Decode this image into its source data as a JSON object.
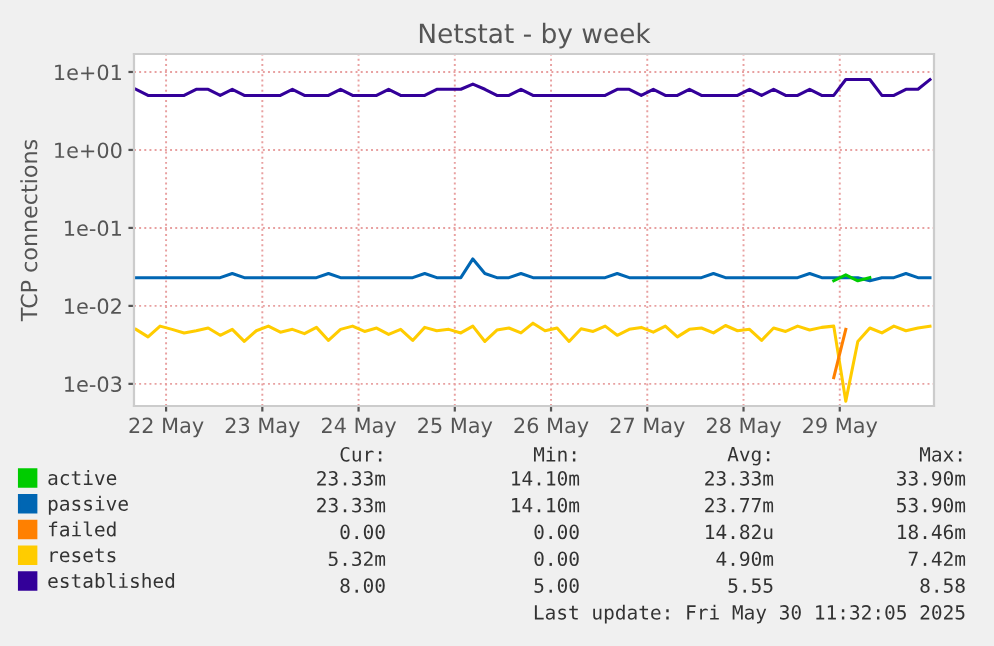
{
  "chart_data": {
    "type": "line",
    "title": "Netstat - by week",
    "ylabel": "TCP connections",
    "x": [
      "2025-05-22T04:30",
      "2025-05-22T07:30",
      "2025-05-22T10:30",
      "2025-05-22T13:30",
      "2025-05-22T16:30",
      "2025-05-22T19:30",
      "2025-05-22T22:30",
      "2025-05-23T01:30",
      "2025-05-23T04:30",
      "2025-05-23T07:30",
      "2025-05-23T10:30",
      "2025-05-23T13:30",
      "2025-05-23T16:30",
      "2025-05-23T19:30",
      "2025-05-23T22:30",
      "2025-05-24T01:30",
      "2025-05-24T04:30",
      "2025-05-24T07:30",
      "2025-05-24T10:30",
      "2025-05-24T13:30",
      "2025-05-24T16:30",
      "2025-05-24T19:30",
      "2025-05-24T22:30",
      "2025-05-25T01:30",
      "2025-05-25T04:30",
      "2025-05-25T07:30",
      "2025-05-25T10:30",
      "2025-05-25T13:30",
      "2025-05-25T16:30",
      "2025-05-25T19:30",
      "2025-05-25T22:30",
      "2025-05-26T01:30",
      "2025-05-26T04:30",
      "2025-05-26T07:30",
      "2025-05-26T10:30",
      "2025-05-26T13:30",
      "2025-05-26T16:30",
      "2025-05-26T19:30",
      "2025-05-26T22:30",
      "2025-05-27T01:30",
      "2025-05-27T04:30",
      "2025-05-27T07:30",
      "2025-05-27T10:30",
      "2025-05-27T13:30",
      "2025-05-27T16:30",
      "2025-05-27T19:30",
      "2025-05-27T22:30",
      "2025-05-28T01:30",
      "2025-05-28T04:30",
      "2025-05-28T07:30",
      "2025-05-28T10:30",
      "2025-05-28T13:30",
      "2025-05-28T16:30",
      "2025-05-28T19:30",
      "2025-05-28T22:30",
      "2025-05-29T01:30",
      "2025-05-29T04:30",
      "2025-05-29T07:30",
      "2025-05-29T10:30",
      "2025-05-29T13:30",
      "2025-05-29T16:30",
      "2025-05-29T19:30",
      "2025-05-29T22:30",
      "2025-05-30T01:30",
      "2025-05-30T04:30",
      "2025-05-30T07:30",
      "2025-05-30T10:30"
    ],
    "series": [
      {
        "name": "active",
        "color": "#00cc00",
        "values": [
          null,
          null,
          null,
          null,
          null,
          null,
          null,
          null,
          null,
          null,
          null,
          null,
          null,
          null,
          null,
          null,
          null,
          null,
          null,
          null,
          null,
          null,
          null,
          null,
          null,
          null,
          null,
          null,
          null,
          null,
          null,
          null,
          null,
          null,
          null,
          null,
          null,
          null,
          null,
          null,
          null,
          null,
          null,
          null,
          null,
          null,
          null,
          null,
          null,
          null,
          null,
          null,
          null,
          null,
          null,
          null,
          null,
          null,
          0.021,
          0.025,
          0.021,
          0.023,
          null,
          null,
          null,
          null,
          null
        ]
      },
      {
        "name": "passive",
        "color": "#0066b3",
        "values": [
          0.023,
          0.023,
          0.023,
          0.023,
          0.023,
          0.023,
          0.023,
          0.023,
          0.026,
          0.023,
          0.023,
          0.023,
          0.023,
          0.023,
          0.023,
          0.023,
          0.026,
          0.023,
          0.023,
          0.023,
          0.023,
          0.023,
          0.023,
          0.023,
          0.026,
          0.023,
          0.023,
          0.023,
          0.04,
          0.026,
          0.023,
          0.023,
          0.026,
          0.023,
          0.023,
          0.023,
          0.023,
          0.023,
          0.023,
          0.023,
          0.026,
          0.023,
          0.023,
          0.023,
          0.023,
          0.023,
          0.023,
          0.023,
          0.026,
          0.023,
          0.023,
          0.023,
          0.023,
          0.023,
          0.023,
          0.023,
          0.026,
          0.023,
          0.023,
          0.023,
          0.023,
          0.021,
          0.023,
          0.023,
          0.026,
          0.023,
          0.023
        ]
      },
      {
        "name": "failed",
        "color": "#ff8000",
        "values": [
          null,
          null,
          null,
          null,
          null,
          null,
          null,
          null,
          null,
          null,
          null,
          null,
          null,
          null,
          null,
          null,
          null,
          null,
          null,
          null,
          null,
          null,
          null,
          null,
          null,
          null,
          null,
          null,
          null,
          null,
          null,
          null,
          null,
          null,
          null,
          null,
          null,
          null,
          null,
          null,
          null,
          null,
          null,
          null,
          null,
          null,
          null,
          null,
          null,
          null,
          null,
          null,
          null,
          null,
          null,
          null,
          null,
          null,
          0.0012,
          0.005,
          null,
          null,
          null,
          null,
          null,
          null,
          null
        ]
      },
      {
        "name": "resets",
        "color": "#ffcc00",
        "values": [
          0.005,
          0.004,
          0.0055,
          0.005,
          0.0045,
          0.0048,
          0.0052,
          0.0042,
          0.005,
          0.0035,
          0.0048,
          0.0055,
          0.0046,
          0.005,
          0.0044,
          0.0053,
          0.0036,
          0.005,
          0.0055,
          0.0047,
          0.0052,
          0.0043,
          0.005,
          0.0036,
          0.0053,
          0.0048,
          0.005,
          0.0045,
          0.0055,
          0.0035,
          0.0049,
          0.0052,
          0.0045,
          0.006,
          0.0048,
          0.0052,
          0.0035,
          0.0051,
          0.0047,
          0.0055,
          0.0042,
          0.005,
          0.0053,
          0.0046,
          0.0055,
          0.004,
          0.005,
          0.0052,
          0.0045,
          0.0056,
          0.0048,
          0.005,
          0.0036,
          0.0052,
          0.0047,
          0.0055,
          0.0049,
          0.0053,
          0.0055,
          0.0006,
          0.0035,
          0.0052,
          0.0045,
          0.0055,
          0.0048,
          0.0052,
          0.0055
        ]
      },
      {
        "name": "established",
        "color": "#330099",
        "values": [
          6,
          5,
          5,
          5,
          5,
          6,
          6,
          5,
          6,
          5,
          5,
          5,
          5,
          6,
          5,
          5,
          5,
          6,
          5,
          5,
          5,
          6,
          5,
          5,
          5,
          6,
          6,
          6,
          7,
          6,
          5,
          5,
          6,
          5,
          5,
          5,
          5,
          5,
          5,
          5,
          6,
          6,
          5,
          6,
          5,
          5,
          6,
          5,
          5,
          5,
          5,
          6,
          5,
          6,
          5,
          5,
          6,
          5,
          5,
          8,
          8,
          8,
          5,
          5,
          6,
          6,
          8
        ]
      }
    ],
    "xlim": [
      "2025-05-22T04:00",
      "2025-05-30T11:30"
    ],
    "xticks": [
      {
        "value": "2025-05-22T12:00",
        "label": "22 May"
      },
      {
        "value": "2025-05-23T12:00",
        "label": "23 May"
      },
      {
        "value": "2025-05-24T12:00",
        "label": "24 May"
      },
      {
        "value": "2025-05-25T12:00",
        "label": "25 May"
      },
      {
        "value": "2025-05-26T12:00",
        "label": "26 May"
      },
      {
        "value": "2025-05-27T12:00",
        "label": "27 May"
      },
      {
        "value": "2025-05-28T12:00",
        "label": "28 May"
      },
      {
        "value": "2025-05-29T12:00",
        "label": "29 May"
      }
    ],
    "log": "y",
    "ylim": [
      0.00052,
      17
    ],
    "yticks": [
      {
        "value": 10,
        "label": "1e+01"
      },
      {
        "value": 1,
        "label": "1e+00"
      },
      {
        "value": 0.1,
        "label": "1e-01"
      },
      {
        "value": 0.01,
        "label": "1e-02"
      },
      {
        "value": 0.001,
        "label": "1e-03"
      }
    ],
    "grid": true,
    "legend": "bottom",
    "marker": "none",
    "line_style": "solid",
    "annotations": [
      "Cur:",
      "Min:",
      "Avg:",
      "Max:",
      "23.33m",
      "14.10m",
      "23.33m",
      "33.90m",
      "23.33m",
      "14.10m",
      "23.77m",
      "53.90m",
      "0.00",
      "0.00",
      "14.82u",
      "18.46m",
      "5.32m",
      "0.00",
      "4.90m",
      "7.42m",
      "8.00",
      "5.00",
      "5.55",
      "8.58",
      "Last update: Fri May 30 11:32:05 2025"
    ]
  }
}
